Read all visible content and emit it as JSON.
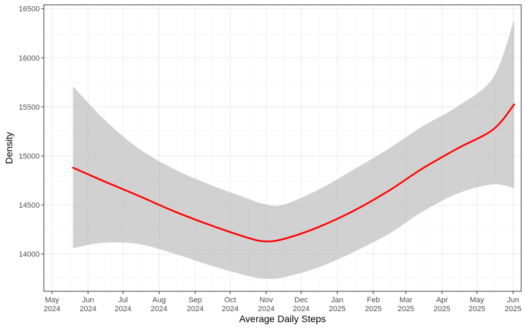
{
  "chart_data": {
    "type": "line",
    "title": "",
    "xlabel": "Average Daily Steps",
    "ylabel": "Density",
    "x_ticks": [
      {
        "month": "May",
        "year": "2024",
        "date": "2024-05-01"
      },
      {
        "month": "Jun",
        "year": "2024",
        "date": "2024-06-01"
      },
      {
        "month": "Jul",
        "year": "2024",
        "date": "2024-07-01"
      },
      {
        "month": "Aug",
        "year": "2024",
        "date": "2024-08-01"
      },
      {
        "month": "Sep",
        "year": "2024",
        "date": "2024-09-01"
      },
      {
        "month": "Oct",
        "year": "2024",
        "date": "2024-10-01"
      },
      {
        "month": "Nov",
        "year": "2024",
        "date": "2024-11-01"
      },
      {
        "month": "Dec",
        "year": "2024",
        "date": "2024-12-01"
      },
      {
        "month": "Jan",
        "year": "2025",
        "date": "2025-01-01"
      },
      {
        "month": "Feb",
        "year": "2025",
        "date": "2025-02-01"
      },
      {
        "month": "Mar",
        "year": "2025",
        "date": "2025-03-01"
      },
      {
        "month": "Apr",
        "year": "2025",
        "date": "2025-04-01"
      },
      {
        "month": "May",
        "year": "2025",
        "date": "2025-05-01"
      },
      {
        "month": "Jun",
        "year": "2025",
        "date": "2025-06-01"
      }
    ],
    "y_ticks": [
      "14000",
      "14500",
      "15000",
      "15500",
      "16000",
      "16500"
    ],
    "xlim": [
      "2024-04-24",
      "2025-06-08"
    ],
    "ylim": [
      13620,
      16540
    ],
    "grid": true,
    "series": [
      {
        "color": "#ff0000",
        "band_color": "#b3b3b3",
        "x": [
          "2024-05-19",
          "2024-06-15",
          "2024-07-15",
          "2024-08-15",
          "2024-09-15",
          "2024-10-15",
          "2024-10-30",
          "2024-11-15",
          "2024-12-15",
          "2025-01-15",
          "2025-02-15",
          "2025-03-15",
          "2025-04-15",
          "2025-05-15",
          "2025-06-02"
        ],
        "y": [
          14880,
          14740,
          14590,
          14430,
          14290,
          14170,
          14130,
          14150,
          14270,
          14440,
          14650,
          14870,
          15080,
          15270,
          15525
        ],
        "ymin": [
          14060,
          14115,
          14100,
          14000,
          13880,
          13780,
          13750,
          13760,
          13860,
          14020,
          14210,
          14430,
          14620,
          14710,
          14670
        ],
        "ymax": [
          15710,
          15370,
          15070,
          14860,
          14700,
          14570,
          14510,
          14500,
          14650,
          14860,
          15080,
          15300,
          15510,
          15800,
          16390
        ]
      }
    ]
  }
}
